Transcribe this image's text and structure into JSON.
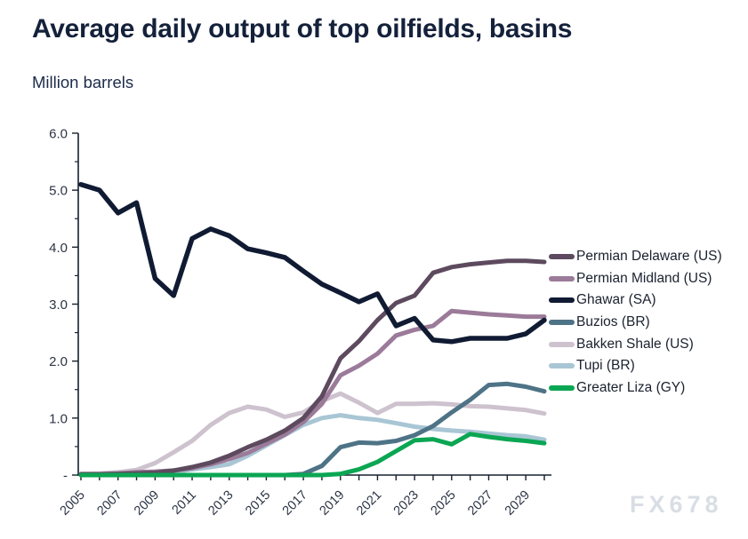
{
  "page": {
    "title": "Average daily output of top oilfields, basins",
    "subtitle": "Million barrels",
    "watermark": "FX678"
  },
  "colors": {
    "title_text": "#14213b",
    "axis": "#16202e",
    "tick_label": "#2b3444",
    "legend_text": "#1a222f",
    "watermark": "#d9dee5",
    "background": "#ffffff"
  },
  "chart_data": {
    "type": "line",
    "title": "Average daily output of top oilfields, basins",
    "ylabel": "Million barrels",
    "xlabel": "",
    "grid": false,
    "legend_position": "right",
    "ylim": [
      0,
      6
    ],
    "x": [
      2005,
      2006,
      2007,
      2008,
      2009,
      2010,
      2011,
      2012,
      2013,
      2014,
      2015,
      2016,
      2017,
      2018,
      2019,
      2020,
      2021,
      2022,
      2023,
      2024,
      2025,
      2026,
      2027,
      2028,
      2029,
      2030
    ],
    "x_label_years": [
      "2005",
      "2007",
      "2009",
      "2011",
      "2013",
      "2015",
      "2017",
      "2019",
      "2021",
      "2023",
      "2025",
      "2027",
      "2029"
    ],
    "y_ticks": [
      {
        "value": 0,
        "label": "-"
      },
      {
        "value": 1,
        "label": "1.0"
      },
      {
        "value": 2,
        "label": "2.0"
      },
      {
        "value": 3,
        "label": "3.0"
      },
      {
        "value": 4,
        "label": "4.0"
      },
      {
        "value": 5,
        "label": "5.0"
      },
      {
        "value": 6,
        "label": "6.0"
      }
    ],
    "y_minor_tick_step": 0.5,
    "series": [
      {
        "name": "Permian Delaware (US)",
        "color": "#5d4a5e",
        "z": 5,
        "width": 5,
        "values": [
          0.01,
          0.01,
          0.02,
          0.03,
          0.04,
          0.08,
          0.14,
          0.22,
          0.34,
          0.49,
          0.62,
          0.78,
          1.0,
          1.38,
          2.05,
          2.35,
          2.72,
          3.02,
          3.15,
          3.55,
          3.65,
          3.7,
          3.73,
          3.76,
          3.76,
          3.74
        ]
      },
      {
        "name": "Permian Midland (US)",
        "color": "#9b7b99",
        "z": 4,
        "width": 5,
        "values": [
          0.02,
          0.02,
          0.03,
          0.05,
          0.06,
          0.08,
          0.12,
          0.19,
          0.28,
          0.39,
          0.55,
          0.71,
          0.93,
          1.25,
          1.75,
          1.92,
          2.13,
          2.45,
          2.55,
          2.62,
          2.88,
          2.85,
          2.82,
          2.8,
          2.78,
          2.78
        ]
      },
      {
        "name": "Ghawar (SA)",
        "color": "#101b33",
        "z": 7,
        "width": 5.5,
        "values": [
          5.1,
          5.0,
          4.6,
          4.78,
          3.45,
          3.15,
          4.15,
          4.32,
          4.2,
          3.97,
          3.9,
          3.82,
          3.58,
          3.35,
          3.2,
          3.04,
          3.18,
          2.62,
          2.75,
          2.37,
          2.34,
          2.4,
          2.4,
          2.4,
          2.48,
          2.72
        ]
      },
      {
        "name": "Buzios (BR)",
        "color": "#4e7386",
        "z": 3,
        "width": 5,
        "values": [
          0,
          0,
          0,
          0,
          0,
          0,
          0,
          0,
          0,
          0,
          0,
          0,
          0.02,
          0.16,
          0.49,
          0.57,
          0.56,
          0.6,
          0.7,
          0.86,
          1.1,
          1.32,
          1.58,
          1.6,
          1.55,
          1.47
        ]
      },
      {
        "name": "Bakken Shale (US)",
        "color": "#cdc2ce",
        "z": 2,
        "width": 5,
        "values": [
          0.02,
          0.03,
          0.05,
          0.09,
          0.21,
          0.4,
          0.6,
          0.88,
          1.09,
          1.2,
          1.15,
          1.02,
          1.1,
          1.3,
          1.43,
          1.27,
          1.09,
          1.25,
          1.25,
          1.26,
          1.24,
          1.21,
          1.2,
          1.17,
          1.14,
          1.08
        ]
      },
      {
        "name": "Tupi (BR)",
        "color": "#a9c6d5",
        "z": 1,
        "width": 5,
        "values": [
          0.0,
          0.0,
          0.01,
          0.01,
          0.02,
          0.05,
          0.1,
          0.14,
          0.19,
          0.34,
          0.52,
          0.7,
          0.88,
          1.0,
          1.05,
          1.0,
          0.97,
          0.91,
          0.85,
          0.81,
          0.78,
          0.76,
          0.73,
          0.7,
          0.68,
          0.62
        ]
      },
      {
        "name": "Greater Liza (GY)",
        "color": "#0ba653",
        "z": 6,
        "width": 5,
        "values": [
          0,
          0,
          0,
          0,
          0,
          0,
          0,
          0,
          0,
          0,
          0,
          0,
          0,
          0,
          0.02,
          0.1,
          0.23,
          0.42,
          0.61,
          0.63,
          0.54,
          0.72,
          0.67,
          0.63,
          0.6,
          0.56
        ]
      }
    ]
  }
}
